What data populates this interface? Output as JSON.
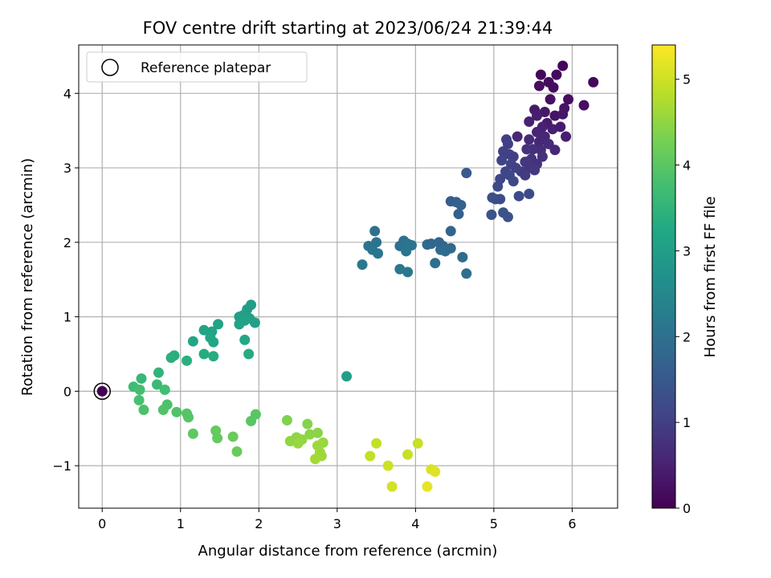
{
  "chart_data": {
    "type": "scatter",
    "title": "FOV centre drift starting at 2023/06/24 21:39:44",
    "xlabel": "Angular distance from reference (arcmin)",
    "ylabel": "Rotation from reference (arcmin)",
    "xlim": [
      -0.3,
      6.58
    ],
    "ylim": [
      -1.57,
      4.65
    ],
    "xticks": [
      0,
      1,
      2,
      3,
      4,
      5,
      6
    ],
    "yticks": [
      -1,
      0,
      1,
      2,
      3,
      4
    ],
    "xtick_labels": [
      "0",
      "1",
      "2",
      "3",
      "4",
      "5",
      "6"
    ],
    "ytick_labels": [
      "−1",
      "0",
      "1",
      "2",
      "3",
      "4"
    ],
    "grid": true,
    "legend": {
      "placement": "top-left",
      "entries": [
        "Reference platepar"
      ]
    },
    "reference_point": {
      "x": 0,
      "y": 0,
      "value": 0
    },
    "colorbar": {
      "label": "Hours from first FF file",
      "colormap": "viridis",
      "range": [
        0,
        5.4
      ],
      "ticks": [
        0,
        1,
        2,
        3,
        4,
        5
      ],
      "tick_labels": [
        "0",
        "1",
        "2",
        "3",
        "4",
        "5"
      ]
    },
    "series": [
      {
        "points": [
          {
            "x": 5.6,
            "y": 4.25,
            "c": 0.1
          },
          {
            "x": 5.88,
            "y": 4.37,
            "c": 0.1
          },
          {
            "x": 6.27,
            "y": 4.15,
            "c": 0.1
          },
          {
            "x": 5.7,
            "y": 4.15,
            "c": 0.15
          },
          {
            "x": 5.76,
            "y": 4.08,
            "c": 0.2
          },
          {
            "x": 5.8,
            "y": 4.25,
            "c": 0.15
          },
          {
            "x": 5.58,
            "y": 4.1,
            "c": 0.2
          },
          {
            "x": 6.15,
            "y": 3.84,
            "c": 0.2
          },
          {
            "x": 5.95,
            "y": 3.92,
            "c": 0.2
          },
          {
            "x": 5.72,
            "y": 3.92,
            "c": 0.25
          },
          {
            "x": 5.9,
            "y": 3.8,
            "c": 0.3
          },
          {
            "x": 5.78,
            "y": 3.7,
            "c": 0.3
          },
          {
            "x": 5.65,
            "y": 3.75,
            "c": 0.35
          },
          {
            "x": 5.52,
            "y": 3.78,
            "c": 0.4
          },
          {
            "x": 5.88,
            "y": 3.72,
            "c": 0.35
          },
          {
            "x": 5.68,
            "y": 3.6,
            "c": 0.4
          },
          {
            "x": 5.55,
            "y": 3.7,
            "c": 0.45
          },
          {
            "x": 5.45,
            "y": 3.62,
            "c": 0.5
          },
          {
            "x": 5.62,
            "y": 3.55,
            "c": 0.5
          },
          {
            "x": 5.75,
            "y": 3.52,
            "c": 0.45
          },
          {
            "x": 5.85,
            "y": 3.55,
            "c": 0.4
          },
          {
            "x": 5.92,
            "y": 3.42,
            "c": 0.45
          },
          {
            "x": 5.55,
            "y": 3.48,
            "c": 0.55
          },
          {
            "x": 5.65,
            "y": 3.42,
            "c": 0.55
          },
          {
            "x": 5.3,
            "y": 3.42,
            "c": 0.6
          },
          {
            "x": 5.45,
            "y": 3.38,
            "c": 0.65
          },
          {
            "x": 5.58,
            "y": 3.35,
            "c": 0.6
          },
          {
            "x": 5.7,
            "y": 3.32,
            "c": 0.65
          },
          {
            "x": 5.78,
            "y": 3.24,
            "c": 0.6
          },
          {
            "x": 5.6,
            "y": 3.24,
            "c": 0.7
          },
          {
            "x": 5.5,
            "y": 3.25,
            "c": 0.75
          },
          {
            "x": 5.42,
            "y": 3.25,
            "c": 0.8
          },
          {
            "x": 5.62,
            "y": 3.15,
            "c": 0.75
          },
          {
            "x": 5.48,
            "y": 3.12,
            "c": 0.8
          },
          {
            "x": 5.4,
            "y": 3.08,
            "c": 0.85
          },
          {
            "x": 5.55,
            "y": 3.05,
            "c": 0.8
          },
          {
            "x": 5.45,
            "y": 3.0,
            "c": 0.85
          },
          {
            "x": 5.52,
            "y": 2.97,
            "c": 0.9
          },
          {
            "x": 5.35,
            "y": 2.95,
            "c": 0.9
          },
          {
            "x": 5.4,
            "y": 2.9,
            "c": 0.95
          },
          {
            "x": 5.16,
            "y": 3.38,
            "c": 1.0
          },
          {
            "x": 5.18,
            "y": 3.32,
            "c": 1.0
          },
          {
            "x": 5.12,
            "y": 3.22,
            "c": 1.05
          },
          {
            "x": 5.2,
            "y": 3.18,
            "c": 1.05
          },
          {
            "x": 5.25,
            "y": 3.15,
            "c": 1.0
          },
          {
            "x": 5.1,
            "y": 3.1,
            "c": 1.1
          },
          {
            "x": 5.22,
            "y": 3.05,
            "c": 1.1
          },
          {
            "x": 5.28,
            "y": 3.0,
            "c": 1.05
          },
          {
            "x": 5.15,
            "y": 2.95,
            "c": 1.1
          },
          {
            "x": 5.2,
            "y": 2.9,
            "c": 1.15
          },
          {
            "x": 5.08,
            "y": 2.85,
            "c": 1.15
          },
          {
            "x": 5.25,
            "y": 2.82,
            "c": 1.2
          },
          {
            "x": 5.05,
            "y": 2.75,
            "c": 1.2
          },
          {
            "x": 5.45,
            "y": 2.65,
            "c": 1.2
          },
          {
            "x": 5.32,
            "y": 2.62,
            "c": 1.25
          },
          {
            "x": 5.02,
            "y": 2.58,
            "c": 1.3
          },
          {
            "x": 5.08,
            "y": 2.58,
            "c": 1.25
          },
          {
            "x": 4.98,
            "y": 2.6,
            "c": 1.3
          },
          {
            "x": 5.12,
            "y": 2.4,
            "c": 1.35
          },
          {
            "x": 5.18,
            "y": 2.34,
            "c": 1.35
          },
          {
            "x": 4.97,
            "y": 2.37,
            "c": 1.4
          },
          {
            "x": 4.65,
            "y": 2.93,
            "c": 1.5
          },
          {
            "x": 4.45,
            "y": 2.55,
            "c": 1.6
          },
          {
            "x": 4.52,
            "y": 2.54,
            "c": 1.65
          },
          {
            "x": 4.58,
            "y": 2.5,
            "c": 1.7
          },
          {
            "x": 4.55,
            "y": 2.38,
            "c": 1.65
          },
          {
            "x": 4.45,
            "y": 2.15,
            "c": 1.75
          },
          {
            "x": 4.3,
            "y": 2.0,
            "c": 1.8
          },
          {
            "x": 4.35,
            "y": 1.95,
            "c": 1.8
          },
          {
            "x": 4.15,
            "y": 1.97,
            "c": 1.85
          },
          {
            "x": 4.2,
            "y": 1.98,
            "c": 1.8
          },
          {
            "x": 4.32,
            "y": 1.9,
            "c": 1.85
          },
          {
            "x": 4.38,
            "y": 1.88,
            "c": 1.9
          },
          {
            "x": 4.45,
            "y": 1.92,
            "c": 1.85
          },
          {
            "x": 4.6,
            "y": 1.8,
            "c": 1.9
          },
          {
            "x": 4.25,
            "y": 1.72,
            "c": 1.95
          },
          {
            "x": 4.65,
            "y": 1.58,
            "c": 1.95
          },
          {
            "x": 3.48,
            "y": 2.15,
            "c": 2.0
          },
          {
            "x": 3.5,
            "y": 2.0,
            "c": 2.05
          },
          {
            "x": 3.4,
            "y": 1.95,
            "c": 2.05
          },
          {
            "x": 3.45,
            "y": 1.9,
            "c": 2.1
          },
          {
            "x": 3.52,
            "y": 1.85,
            "c": 2.1
          },
          {
            "x": 3.32,
            "y": 1.7,
            "c": 2.15
          },
          {
            "x": 3.8,
            "y": 1.95,
            "c": 2.0
          },
          {
            "x": 3.85,
            "y": 2.02,
            "c": 2.0
          },
          {
            "x": 3.9,
            "y": 1.98,
            "c": 2.05
          },
          {
            "x": 3.95,
            "y": 1.96,
            "c": 2.05
          },
          {
            "x": 3.88,
            "y": 1.88,
            "c": 2.1
          },
          {
            "x": 3.8,
            "y": 1.64,
            "c": 2.15
          },
          {
            "x": 3.9,
            "y": 1.6,
            "c": 2.15
          },
          {
            "x": 3.12,
            "y": 0.2,
            "c": 3.0
          },
          {
            "x": 1.9,
            "y": 1.16,
            "c": 3.0
          },
          {
            "x": 1.85,
            "y": 1.1,
            "c": 3.0
          },
          {
            "x": 1.75,
            "y": 1.0,
            "c": 3.0
          },
          {
            "x": 1.8,
            "y": 1.02,
            "c": 3.05
          },
          {
            "x": 1.88,
            "y": 0.98,
            "c": 3.05
          },
          {
            "x": 1.75,
            "y": 0.9,
            "c": 3.1
          },
          {
            "x": 1.95,
            "y": 0.92,
            "c": 3.05
          },
          {
            "x": 1.82,
            "y": 0.95,
            "c": 3.1
          },
          {
            "x": 1.48,
            "y": 0.9,
            "c": 3.1
          },
          {
            "x": 1.3,
            "y": 0.82,
            "c": 3.15
          },
          {
            "x": 1.4,
            "y": 0.8,
            "c": 3.15
          },
          {
            "x": 1.38,
            "y": 0.72,
            "c": 3.2
          },
          {
            "x": 1.42,
            "y": 0.66,
            "c": 3.2
          },
          {
            "x": 1.16,
            "y": 0.67,
            "c": 3.2
          },
          {
            "x": 1.82,
            "y": 0.69,
            "c": 3.25
          },
          {
            "x": 1.3,
            "y": 0.5,
            "c": 3.3
          },
          {
            "x": 1.42,
            "y": 0.47,
            "c": 3.3
          },
          {
            "x": 1.87,
            "y": 0.5,
            "c": 3.3
          },
          {
            "x": 0.92,
            "y": 0.48,
            "c": 3.35
          },
          {
            "x": 0.88,
            "y": 0.45,
            "c": 3.4
          },
          {
            "x": 1.08,
            "y": 0.41,
            "c": 3.4
          },
          {
            "x": 0.72,
            "y": 0.25,
            "c": 3.5
          },
          {
            "x": 0.5,
            "y": 0.17,
            "c": 3.6
          },
          {
            "x": 0.7,
            "y": 0.09,
            "c": 3.65
          },
          {
            "x": 0.4,
            "y": 0.06,
            "c": 3.7
          },
          {
            "x": 0.48,
            "y": 0.02,
            "c": 3.75
          },
          {
            "x": 0.8,
            "y": 0.02,
            "c": 3.75
          },
          {
            "x": 0.47,
            "y": -0.12,
            "c": 3.8
          },
          {
            "x": 0.83,
            "y": -0.18,
            "c": 3.85
          },
          {
            "x": 0.53,
            "y": -0.25,
            "c": 3.85
          },
          {
            "x": 0.78,
            "y": -0.25,
            "c": 3.9
          },
          {
            "x": 0.95,
            "y": -0.28,
            "c": 3.9
          },
          {
            "x": 1.08,
            "y": -0.3,
            "c": 3.95
          },
          {
            "x": 1.1,
            "y": -0.35,
            "c": 3.95
          },
          {
            "x": 1.96,
            "y": -0.31,
            "c": 4.0
          },
          {
            "x": 1.9,
            "y": -0.4,
            "c": 4.0
          },
          {
            "x": 1.16,
            "y": -0.57,
            "c": 4.05
          },
          {
            "x": 1.45,
            "y": -0.53,
            "c": 4.1
          },
          {
            "x": 1.47,
            "y": -0.63,
            "c": 4.1
          },
          {
            "x": 1.67,
            "y": -0.61,
            "c": 4.15
          },
          {
            "x": 1.72,
            "y": -0.81,
            "c": 4.15
          },
          {
            "x": 2.36,
            "y": -0.39,
            "c": 4.35
          },
          {
            "x": 2.62,
            "y": -0.44,
            "c": 4.4
          },
          {
            "x": 2.75,
            "y": -0.56,
            "c": 4.45
          },
          {
            "x": 2.65,
            "y": -0.58,
            "c": 4.45
          },
          {
            "x": 2.48,
            "y": -0.62,
            "c": 4.5
          },
          {
            "x": 2.4,
            "y": -0.67,
            "c": 4.5
          },
          {
            "x": 2.55,
            "y": -0.65,
            "c": 4.5
          },
          {
            "x": 2.5,
            "y": -0.7,
            "c": 4.55
          },
          {
            "x": 2.82,
            "y": -0.69,
            "c": 4.55
          },
          {
            "x": 2.75,
            "y": -0.73,
            "c": 4.6
          },
          {
            "x": 2.78,
            "y": -0.82,
            "c": 4.6
          },
          {
            "x": 2.8,
            "y": -0.87,
            "c": 4.6
          },
          {
            "x": 2.72,
            "y": -0.91,
            "c": 4.65
          },
          {
            "x": 3.5,
            "y": -0.7,
            "c": 4.9
          },
          {
            "x": 3.42,
            "y": -0.87,
            "c": 4.9
          },
          {
            "x": 3.65,
            "y": -1.0,
            "c": 5.0
          },
          {
            "x": 3.9,
            "y": -0.85,
            "c": 4.95
          },
          {
            "x": 4.03,
            "y": -0.7,
            "c": 4.95
          },
          {
            "x": 3.7,
            "y": -1.28,
            "c": 5.05
          },
          {
            "x": 4.2,
            "y": -1.05,
            "c": 5.1
          },
          {
            "x": 4.25,
            "y": -1.08,
            "c": 5.15
          },
          {
            "x": 4.15,
            "y": -1.28,
            "c": 5.2
          }
        ]
      }
    ]
  }
}
